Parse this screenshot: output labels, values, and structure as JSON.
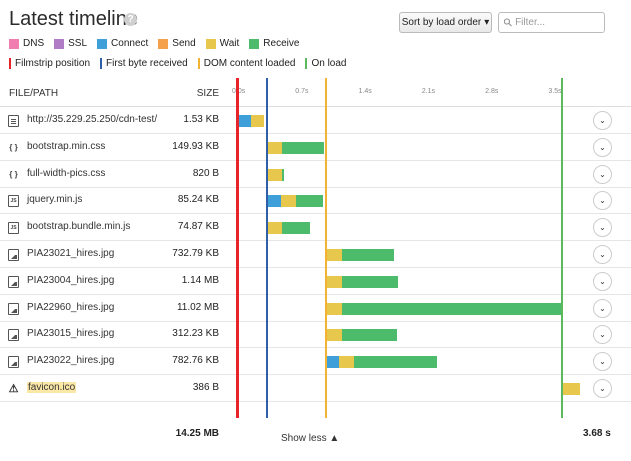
{
  "header": {
    "title": "Latest timeline",
    "help_glyph": "?",
    "sort_label": "Sort by load order",
    "sort_caret": "▾",
    "filter_placeholder": "Filter...",
    "search_glyph": "⚲"
  },
  "legend": {
    "phases": [
      {
        "label": "DNS",
        "color": "#f17cb0"
      },
      {
        "label": "SSL",
        "color": "#b07cc6"
      },
      {
        "label": "Connect",
        "color": "#3fa0d9"
      },
      {
        "label": "Send",
        "color": "#f5a04a"
      },
      {
        "label": "Wait",
        "color": "#e8c84c"
      },
      {
        "label": "Receive",
        "color": "#4cbb6c"
      }
    ],
    "markers": [
      {
        "label": "Filmstrip position",
        "color": "#e8242b"
      },
      {
        "label": "First byte received",
        "color": "#2f5fa8"
      },
      {
        "label": "DOM content loaded",
        "color": "#f2b233"
      },
      {
        "label": "On load",
        "color": "#5cb85c"
      }
    ]
  },
  "table": {
    "col_file": "FILE/PATH",
    "col_size": "SIZE",
    "ticks": [
      "0.0s",
      "0.7s",
      "1.4s",
      "2.1s",
      "2.8s",
      "3.5s"
    ],
    "rows": [
      {
        "icon": "doc",
        "name": "http://35.229.25.250/cdn-test/",
        "size": "1.53 KB",
        "highlight": false
      },
      {
        "icon": "code",
        "name": "bootstrap.min.css",
        "size": "149.93 KB",
        "highlight": false
      },
      {
        "icon": "code",
        "name": "full-width-pics.css",
        "size": "820 B",
        "highlight": false
      },
      {
        "icon": "js",
        "name": "jquery.min.js",
        "size": "85.24 KB",
        "highlight": false
      },
      {
        "icon": "js",
        "name": "bootstrap.bundle.min.js",
        "size": "74.87 KB",
        "highlight": false
      },
      {
        "icon": "img",
        "name": "PIA23021_hires.jpg",
        "size": "732.79 KB",
        "highlight": false
      },
      {
        "icon": "img",
        "name": "PIA23004_hires.jpg",
        "size": "1.14 MB",
        "highlight": false
      },
      {
        "icon": "img",
        "name": "PIA22960_hires.jpg",
        "size": "11.02 MB",
        "highlight": false
      },
      {
        "icon": "img",
        "name": "PIA23015_hires.jpg",
        "size": "312.23 KB",
        "highlight": false
      },
      {
        "icon": "img",
        "name": "PIA23022_hires.jpg",
        "size": "782.76 KB",
        "highlight": false
      },
      {
        "icon": "warn",
        "name": "favicon.ico",
        "size": "386 B",
        "highlight": true
      }
    ],
    "expand_glyph": "⌄"
  },
  "footer": {
    "total_size": "14.25 MB",
    "show_less": "Show less ▲",
    "total_time": "3.68 s"
  }
}
